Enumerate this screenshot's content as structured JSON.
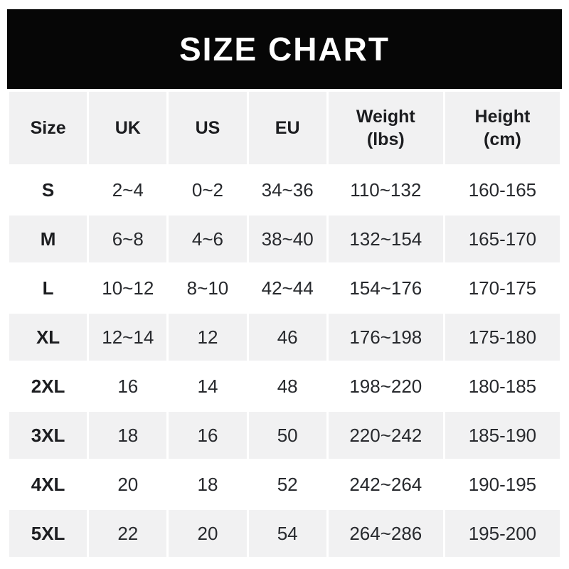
{
  "banner": {
    "title": "SIZE CHART"
  },
  "colors": {
    "page_bg": "#ffffff",
    "banner_bg": "#060606",
    "banner_fg": "#ffffff",
    "cell_gray": "#f1f1f2",
    "text_dark": "#1c1d20",
    "text_value": "#27292d"
  },
  "chart_data": {
    "type": "table",
    "title": "SIZE CHART",
    "columns": [
      "Size",
      "UK",
      "US",
      "EU",
      "Weight (lbs)",
      "Height (cm)"
    ],
    "header_lines": [
      [
        "Size"
      ],
      [
        "UK"
      ],
      [
        "US"
      ],
      [
        "EU"
      ],
      [
        "Weight",
        "(lbs)"
      ],
      [
        "Height",
        "(cm)"
      ]
    ],
    "rows": [
      [
        "S",
        "2~4",
        "0~2",
        "34~36",
        "110~132",
        "160-165"
      ],
      [
        "M",
        "6~8",
        "4~6",
        "38~40",
        "132~154",
        "165-170"
      ],
      [
        "L",
        "10~12",
        "8~10",
        "42~44",
        "154~176",
        "170-175"
      ],
      [
        "XL",
        "12~14",
        "12",
        "46",
        "176~198",
        "175-180"
      ],
      [
        "2XL",
        "16",
        "14",
        "48",
        "198~220",
        "180-185"
      ],
      [
        "3XL",
        "18",
        "16",
        "50",
        "220~242",
        "185-190"
      ],
      [
        "4XL",
        "20",
        "18",
        "52",
        "242~264",
        "190-195"
      ],
      [
        "5XL",
        "22",
        "20",
        "54",
        "264~286",
        "195-200"
      ]
    ],
    "layout": {
      "striped": true,
      "legend": "none",
      "grid": "white 3px gutters between cells"
    }
  }
}
